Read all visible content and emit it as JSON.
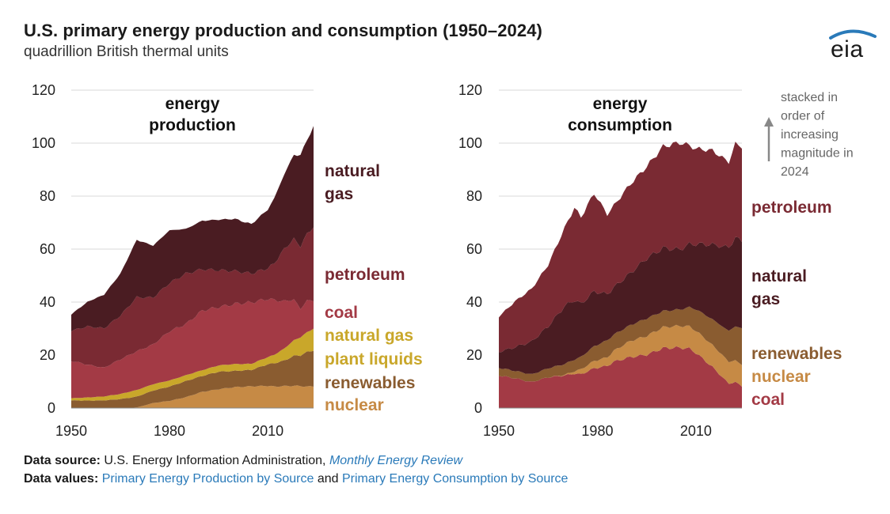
{
  "header": {
    "title": "U.S. primary energy production and consumption (1950–2024)",
    "subtitle": "quadrillion British thermal units",
    "logo_text": "eia"
  },
  "note": {
    "lines": [
      "stacked in",
      "order of",
      "increasing",
      "magnitude in",
      "2024"
    ]
  },
  "colors": {
    "nuclear": "#c68a45",
    "renewables": "#8a5c30",
    "ngpl": "#c9a72a",
    "coal": "#a33a45",
    "petroleum": "#7a2a33",
    "natural_gas": "#4a1c22",
    "gridline": "#d9d9d9",
    "link": "#2a7ab9"
  },
  "footer": {
    "source_label": "Data source:",
    "source_text": "U.S. Energy Information Administration,",
    "source_link": "Monthly Energy Review",
    "values_label": "Data values:",
    "values_link1": "Primary Energy Production by Source",
    "values_and": "and",
    "values_link2": "Primary Energy Consumption by Source"
  },
  "chart_data": [
    {
      "type": "area",
      "stacked": true,
      "title": "energy production",
      "title_lines": [
        "energy",
        "production"
      ],
      "x": [
        1950,
        1955,
        1960,
        1965,
        1970,
        1975,
        1980,
        1985,
        1990,
        1995,
        2000,
        2005,
        2010,
        2012,
        2015,
        2018,
        2020,
        2022,
        2024
      ],
      "xticks": [
        1950,
        1980,
        2010
      ],
      "ylim": [
        0,
        120
      ],
      "yticks": [
        0,
        20,
        40,
        60,
        80,
        100,
        120
      ],
      "xlim": [
        1950,
        2024
      ],
      "series": [
        {
          "name": "nuclear",
          "label_lines": [
            "nuclear"
          ],
          "color_key": "nuclear",
          "values": [
            0,
            0,
            0,
            0,
            0.2,
            1.9,
            2.7,
            4.1,
            6.1,
            7.1,
            7.9,
            8.2,
            8.4,
            8.1,
            8.3,
            8.4,
            8.3,
            8.1,
            8.2
          ]
        },
        {
          "name": "renewables",
          "label_lines": [
            "renewables"
          ],
          "color_key": "renewables",
          "values": [
            2.9,
            2.8,
            2.9,
            3.4,
            4.1,
            4.7,
            5.4,
            6.1,
            6.0,
            6.6,
            6.1,
            6.2,
            8.1,
            8.8,
            9.6,
            11.3,
            11.6,
            13.0,
            13.6
          ]
        },
        {
          "name": "natural gas plant liquids",
          "label_lines": [
            "natural gas",
            "plant liquids"
          ],
          "color_key": "ngpl",
          "values": [
            0.8,
            1.2,
            1.5,
            1.9,
            2.5,
            2.4,
            2.3,
            2.2,
            2.2,
            2.4,
            2.6,
            2.3,
            2.7,
            3.2,
            4.5,
            5.9,
            6.8,
            7.5,
            8.2
          ]
        },
        {
          "name": "coal",
          "label_lines": [
            "coal"
          ],
          "color_key": "coal",
          "values": [
            14.1,
            12.4,
            10.8,
            13.1,
            14.6,
            15.0,
            18.6,
            19.3,
            22.5,
            22.0,
            22.7,
            23.2,
            22.0,
            20.7,
            17.9,
            15.4,
            10.7,
            12.0,
            10.5
          ]
        },
        {
          "name": "petroleum",
          "label_lines": [
            "petroleum"
          ],
          "color_key": "petroleum",
          "values": [
            11.4,
            14.4,
            14.9,
            16.5,
            20.4,
            17.7,
            18.2,
            19.0,
            15.6,
            13.9,
            12.4,
            10.9,
            11.6,
            13.8,
            19.7,
            22.8,
            23.7,
            25.0,
            28.1
          ]
        },
        {
          "name": "natural gas",
          "label_lines": [
            "natural",
            "gas"
          ],
          "color_key": "natural_gas",
          "values": [
            6.2,
            9.3,
            12.7,
            15.8,
            21.7,
            19.6,
            19.9,
            16.9,
            18.3,
            19.1,
            19.7,
            18.6,
            22.1,
            24.6,
            28.1,
            31.9,
            34.2,
            35.8,
            37.4
          ]
        }
      ]
    },
    {
      "type": "area",
      "stacked": true,
      "title": "energy consumption",
      "title_lines": [
        "energy",
        "consumption"
      ],
      "x": [
        1950,
        1955,
        1960,
        1965,
        1970,
        1973,
        1975,
        1979,
        1983,
        1985,
        1990,
        1995,
        2000,
        2005,
        2008,
        2010,
        2015,
        2020,
        2022,
        2024
      ],
      "xticks": [
        1950,
        1980,
        2010
      ],
      "ylim": [
        0,
        120
      ],
      "yticks": [
        0,
        20,
        40,
        60,
        80,
        100,
        120
      ],
      "xlim": [
        1950,
        2024
      ],
      "series": [
        {
          "name": "coal",
          "label_lines": [
            "coal"
          ],
          "color_key": "coal",
          "values": [
            12.3,
            11.2,
            9.8,
            11.6,
            12.3,
            13.0,
            12.7,
            15.0,
            15.9,
            17.5,
            19.2,
            20.1,
            22.6,
            22.8,
            22.4,
            20.8,
            15.5,
            9.2,
            9.8,
            8.2
          ]
        },
        {
          "name": "nuclear",
          "label_lines": [
            "nuclear"
          ],
          "color_key": "nuclear",
          "values": [
            0,
            0,
            0,
            0,
            0.2,
            0.9,
            1.9,
            2.8,
            3.2,
            4.1,
            6.1,
            7.1,
            7.9,
            8.2,
            8.4,
            8.4,
            8.3,
            8.3,
            8.1,
            8.2
          ]
        },
        {
          "name": "renewables",
          "label_lines": [
            "renewables"
          ],
          "color_key": "renewables",
          "values": [
            2.9,
            2.8,
            2.9,
            3.4,
            4.1,
            4.4,
            4.7,
            5.5,
            6.5,
            6.1,
            6.0,
            6.6,
            6.1,
            6.2,
            7.2,
            8.1,
            9.7,
            11.6,
            13.0,
            13.6
          ]
        },
        {
          "name": "natural gas",
          "label_lines": [
            "natural",
            "gas"
          ],
          "color_key": "natural_gas",
          "values": [
            6.0,
            9.0,
            12.4,
            15.8,
            21.8,
            22.5,
            20.0,
            20.7,
            17.4,
            17.8,
            19.6,
            22.7,
            23.8,
            22.6,
            23.8,
            24.6,
            28.2,
            31.5,
            33.4,
            33.1
          ]
        },
        {
          "name": "petroleum",
          "label_lines": [
            "petroleum"
          ],
          "color_key": "petroleum",
          "values": [
            13.3,
            17.3,
            19.9,
            23.2,
            29.5,
            34.8,
            32.7,
            37.1,
            30.1,
            30.9,
            33.6,
            34.6,
            38.3,
            40.4,
            37.3,
            36.0,
            35.5,
            32.2,
            35.5,
            35.5
          ]
        }
      ]
    }
  ]
}
